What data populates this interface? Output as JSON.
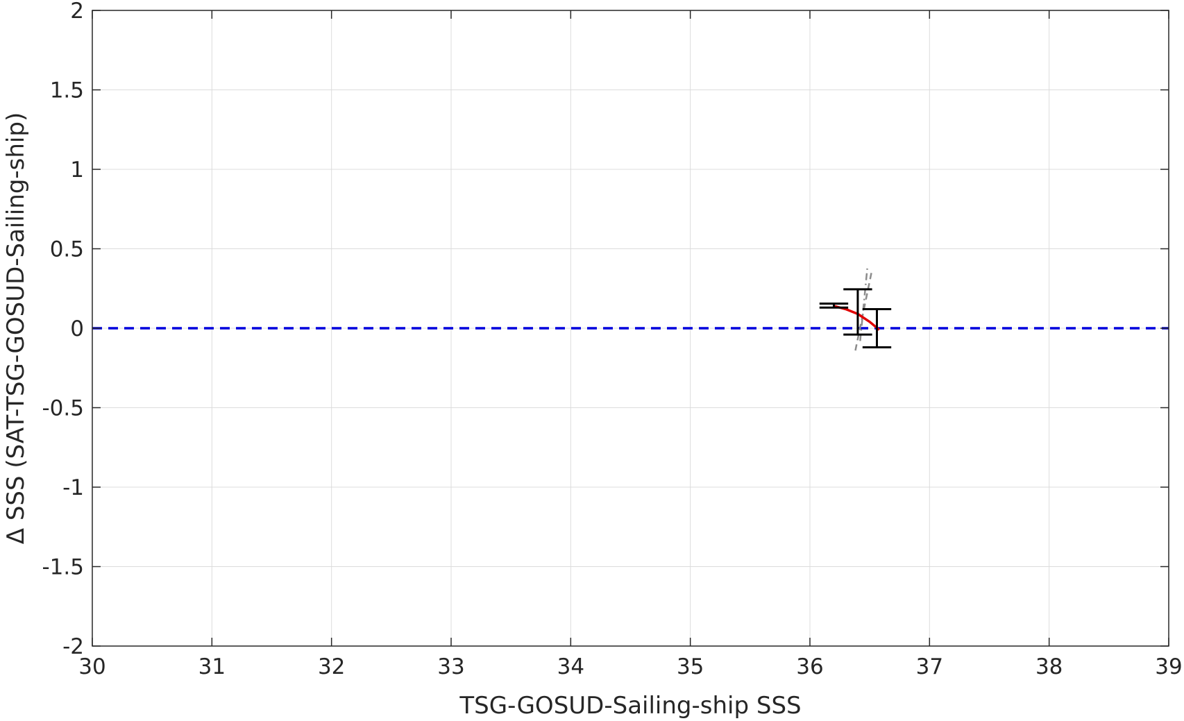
{
  "chart_data": {
    "type": "scatter",
    "title": "",
    "xlabel": "TSG-GOSUD-Sailing-ship SSS",
    "ylabel": "Δ SSS (SAT-TSG-GOSUD-Sailing-ship)",
    "xlim": [
      30,
      39
    ],
    "ylim": [
      -2,
      2
    ],
    "xticks": [
      "30",
      "31",
      "32",
      "33",
      "34",
      "35",
      "36",
      "37",
      "38",
      "39"
    ],
    "yticks": [
      "-2",
      "-1.5",
      "-1",
      "-0.5",
      "0",
      "0.5",
      "1",
      "1.5",
      "2"
    ],
    "grid": true,
    "legend": "none",
    "colors": {
      "zero_line": "#0000dd",
      "mean_line": "#e00000",
      "error_bars": "#000000",
      "spread_lines": "#8c8c8c",
      "grid": "#dcdcdc",
      "axes": "#262626"
    },
    "zero_line": {
      "y": 0,
      "style": "dashed"
    },
    "mean_curve": {
      "x": [
        36.2,
        36.3,
        36.4,
        36.5,
        36.58
      ],
      "y": [
        0.14,
        0.12,
        0.09,
        0.04,
        -0.01
      ]
    },
    "error_bars": [
      {
        "x": 36.2,
        "y": 0.14,
        "low": 0.13,
        "high": 0.155,
        "cap": 0.12
      },
      {
        "x": 36.4,
        "y": 0.1,
        "low": -0.04,
        "high": 0.245,
        "cap": 0.12
      },
      {
        "x": 36.56,
        "y": 0.0,
        "low": -0.12,
        "high": 0.12,
        "cap": 0.12
      }
    ],
    "spread_lines": [
      {
        "style": "dashed",
        "x": [
          36.38,
          36.52
        ],
        "y": [
          -0.14,
          0.37
        ]
      },
      {
        "style": "dashdot",
        "x": [
          36.42,
          36.48
        ],
        "y": [
          -0.08,
          0.38
        ]
      }
    ]
  }
}
